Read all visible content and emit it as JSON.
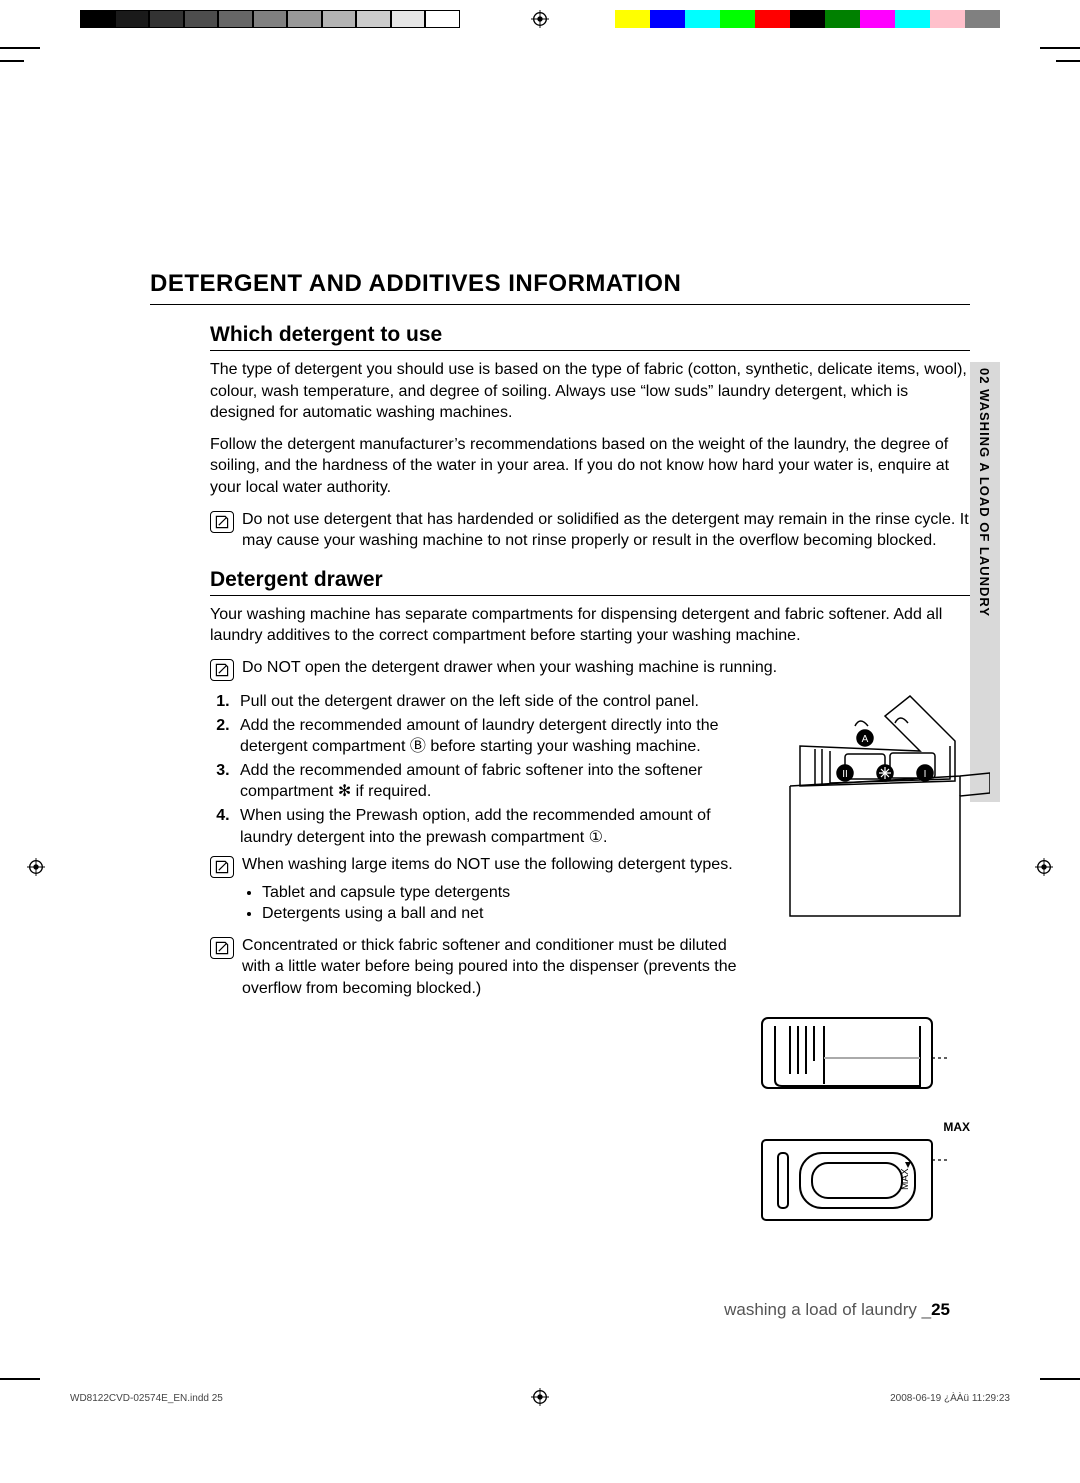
{
  "colorBar": {
    "grayscale": [
      "#000000",
      "#1a1a1a",
      "#333333",
      "#4d4d4d",
      "#666666",
      "#808080",
      "#999999",
      "#b3b3b3",
      "#cccccc",
      "#e6e6e6",
      "#ffffff"
    ],
    "colors": [
      "#ffffff",
      "#ffff00",
      "#0000ff",
      "#00ffff",
      "#00ff00",
      "#ff0000",
      "#000000",
      "#008000",
      "#ff00ff",
      "#00ffff",
      "#ffc0cb",
      "#808080"
    ]
  },
  "sideTab": "02 WASHING A LOAD OF LAUNDRY",
  "h1": "DETERGENT AND ADDITIVES INFORMATION",
  "section1": {
    "title": "Which detergent to use",
    "p1": "The type of detergent you should use is based on the type of fabric (cotton, synthetic, delicate items, wool), colour, wash temperature, and degree of soiling. Always use “low suds” laundry detergent, which is designed for automatic washing machines.",
    "p2": "Follow the detergent manufacturer’s recommendations based on the weight of the laundry, the degree of soiling, and the hardness of the water in your area. If you do not know how hard your water is, enquire at your local water authority.",
    "note": "Do not use detergent that has hardended or solidified as the detergent may remain in the rinse cycle. It may cause your washing machine to not rinse properly or result in the overflow becoming blocked."
  },
  "section2": {
    "title": "Detergent drawer",
    "p1": "Your washing machine has separate compartments for dispensing detergent and fabric softener. Add all laundry additives to the correct compartment before starting your washing machine.",
    "note1": "Do NOT open the detergent drawer when your washing machine is running.",
    "steps": [
      "Pull out the detergent drawer on the left side of the control panel.",
      "Add the recommended amount of laundry detergent directly into the detergent compartment Ⓑ before starting your washing machine.",
      "Add the recommended amount of fabric softener into the softener compartment ✻ if required.",
      "When using the Prewash option, add the recommended amount of laundry detergent into the prewash compartment ①."
    ],
    "note2": "When washing large items do NOT use the following detergent types.",
    "note2_bullets": [
      "Tablet and capsule type detergents",
      "Detergents using a ball and net"
    ],
    "note3": "Concentrated or thick fabric softener and conditioner must be diluted with a little water before being poured into the dispenser (prevents the overflow from becoming blocked.)",
    "maxLabel": "MAX"
  },
  "footer": {
    "text": "washing a load of laundry _",
    "page": "25"
  },
  "tinyFooter": {
    "left": "WD8122CVD-02574E_EN.indd   25",
    "right": "2008-06-19   ¿ÀÀü 11:29:23"
  }
}
